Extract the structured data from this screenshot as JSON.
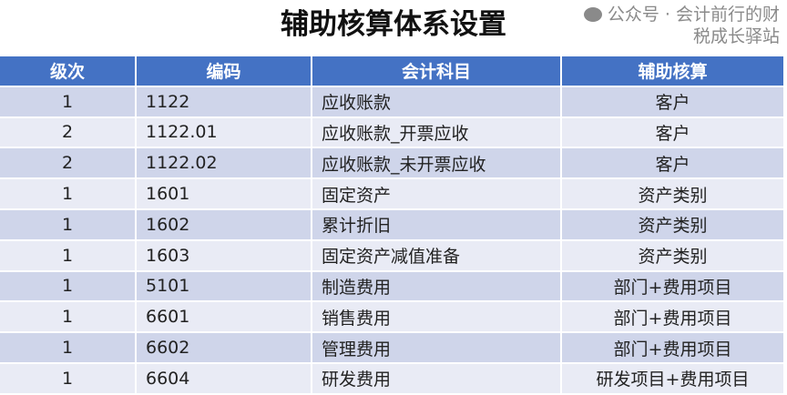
{
  "title": "辅助核算体系设置",
  "colors": {
    "header_bg": "#4472C4",
    "row_odd": "#CFD5EA",
    "row_even": "#E9EBF5"
  },
  "columns": [
    "级次",
    "编码",
    "会计科目",
    "辅助核算"
  ],
  "rows": [
    [
      "1",
      "1122",
      "应收账款",
      "客户"
    ],
    [
      "2",
      "1122.01",
      "应收账款_开票应收",
      "客户"
    ],
    [
      "2",
      "1122.02",
      "应收账款_未开票应收",
      "客户"
    ],
    [
      "1",
      "1601",
      "固定资产",
      "资产类别"
    ],
    [
      "1",
      "1602",
      "累计折旧",
      "资产类别"
    ],
    [
      "1",
      "1603",
      "固定资产减值准备",
      "资产类别"
    ],
    [
      "1",
      "5101",
      "制造费用",
      "部门+费用项目"
    ],
    [
      "1",
      "6601",
      "销售费用",
      "部门+费用项目"
    ],
    [
      "1",
      "6602",
      "管理费用",
      "部门+费用项目"
    ],
    [
      "1",
      "6604",
      "研发费用",
      "研发项目+费用项目"
    ]
  ],
  "watermark": {
    "text": "公众号 · 会计前行的财税成长驿站",
    "icon": "wechat-icon"
  }
}
